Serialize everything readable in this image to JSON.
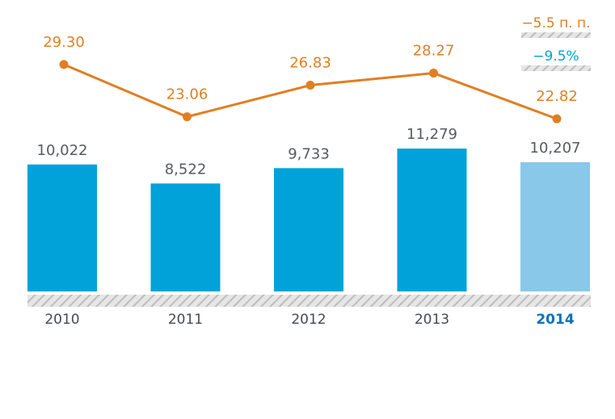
{
  "chart_data": {
    "type": "bar",
    "categories": [
      "2010",
      "2011",
      "2012",
      "2013",
      "2014"
    ],
    "highlight_category": "2014",
    "series": [
      {
        "type": "bar",
        "values": [
          10022,
          8522,
          9733,
          11279,
          10207
        ],
        "value_labels": [
          "10,022",
          "8,522",
          "9,733",
          "11,279",
          "10,207"
        ],
        "colors": [
          "#00a3d9",
          "#00a3d9",
          "#00a3d9",
          "#00a3d9",
          "#8ac8ea"
        ]
      },
      {
        "type": "line",
        "values": [
          29.3,
          23.06,
          26.83,
          28.27,
          22.82
        ],
        "value_labels": [
          "29.30",
          "23.06",
          "26.83",
          "28.27",
          "22.82"
        ],
        "color": "#e07f22"
      }
    ],
    "annotations": [
      {
        "text": "−5.5 п. п.",
        "color": "#e07f22"
      },
      {
        "text": "−9.5%",
        "color": "#00a3d9"
      }
    ],
    "title": "",
    "xlabel": "",
    "ylabel": "",
    "legend": "none",
    "grid": false,
    "colors": {
      "bar": "#00a3d9",
      "bar_highlight": "#8ac8ea",
      "line": "#e07f22",
      "axis_stripe": "#c9c9c9",
      "highlight_text": "#0a72b8"
    }
  }
}
